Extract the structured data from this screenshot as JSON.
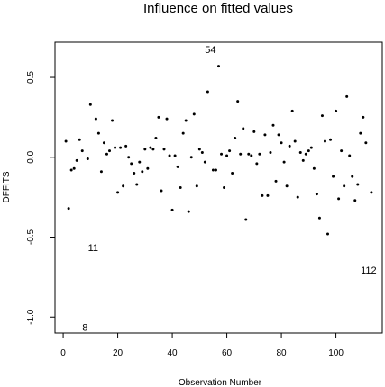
{
  "chart_data": {
    "type": "scatter",
    "title": "Influence on fitted values",
    "xlabel": "Observation Number",
    "ylabel": "DFFITS",
    "xlim": [
      -3,
      117
    ],
    "ylim": [
      -1.1,
      0.72
    ],
    "x_ticks": [
      0,
      20,
      40,
      60,
      80,
      100
    ],
    "y_ticks": [
      -1.0,
      -0.5,
      0.0,
      0.5
    ],
    "x_tick_labels": [
      "0",
      "20",
      "40",
      "60",
      "80",
      "100"
    ],
    "y_tick_labels": [
      "-1.0",
      "-0.5",
      "0.0",
      "0.5"
    ],
    "grid": false,
    "x": [
      1,
      2,
      3,
      4,
      5,
      6,
      7,
      8,
      9,
      10,
      11,
      12,
      13,
      14,
      15,
      16,
      17,
      18,
      19,
      20,
      21,
      22,
      23,
      24,
      25,
      26,
      27,
      28,
      29,
      30,
      31,
      32,
      33,
      34,
      35,
      36,
      37,
      38,
      39,
      40,
      41,
      42,
      43,
      44,
      45,
      46,
      47,
      48,
      49,
      50,
      51,
      52,
      53,
      54,
      55,
      56,
      57,
      58,
      59,
      60,
      61,
      62,
      63,
      64,
      65,
      66,
      67,
      68,
      69,
      70,
      71,
      72,
      73,
      74,
      75,
      76,
      77,
      78,
      79,
      80,
      81,
      82,
      83,
      84,
      85,
      86,
      87,
      88,
      89,
      90,
      91,
      92,
      93,
      94,
      95,
      96,
      97,
      98,
      99,
      100,
      101,
      102,
      103,
      104,
      105,
      106,
      107,
      108,
      109,
      110,
      111,
      112,
      113
    ],
    "values": [
      0.1,
      -0.32,
      -0.08,
      -0.07,
      -0.02,
      0.11,
      0.04,
      -1.07,
      -0.01,
      0.33,
      -0.57,
      0.24,
      0.15,
      -0.09,
      0.09,
      0.02,
      0.04,
      0.23,
      0.06,
      -0.22,
      0.06,
      -0.18,
      0.07,
      0.0,
      -0.04,
      -0.1,
      -0.17,
      -0.03,
      -0.09,
      0.05,
      -0.07,
      0.06,
      0.05,
      0.12,
      0.25,
      -0.21,
      0.05,
      0.24,
      0.01,
      -0.33,
      0.01,
      -0.06,
      -0.19,
      0.15,
      0.23,
      -0.34,
      0.0,
      0.27,
      -0.18,
      0.05,
      0.03,
      -0.03,
      0.41,
      0.67,
      -0.08,
      -0.08,
      0.57,
      0.02,
      -0.19,
      0.01,
      0.04,
      -0.1,
      0.12,
      0.35,
      0.02,
      0.18,
      -0.39,
      0.02,
      0.01,
      0.16,
      -0.04,
      0.02,
      -0.24,
      0.14,
      -0.24,
      0.03,
      0.2,
      -0.15,
      0.14,
      0.09,
      -0.03,
      -0.18,
      0.07,
      0.29,
      0.1,
      -0.25,
      0.03,
      -0.02,
      0.02,
      0.04,
      0.06,
      -0.07,
      -0.23,
      -0.38,
      0.26,
      0.1,
      -0.48,
      0.11,
      -0.12,
      0.29,
      -0.26,
      0.04,
      -0.18,
      0.38,
      0.01,
      -0.12,
      -0.27,
      -0.17,
      0.15,
      0.25,
      0.09,
      -0.71,
      -0.22
    ],
    "point_labels": [
      {
        "x": 8,
        "y": -1.07,
        "text": "8"
      },
      {
        "x": 11,
        "y": -0.57,
        "text": "11"
      },
      {
        "x": 54,
        "y": 0.67,
        "text": "54"
      },
      {
        "x": 112,
        "y": -0.71,
        "text": "112"
      }
    ]
  }
}
